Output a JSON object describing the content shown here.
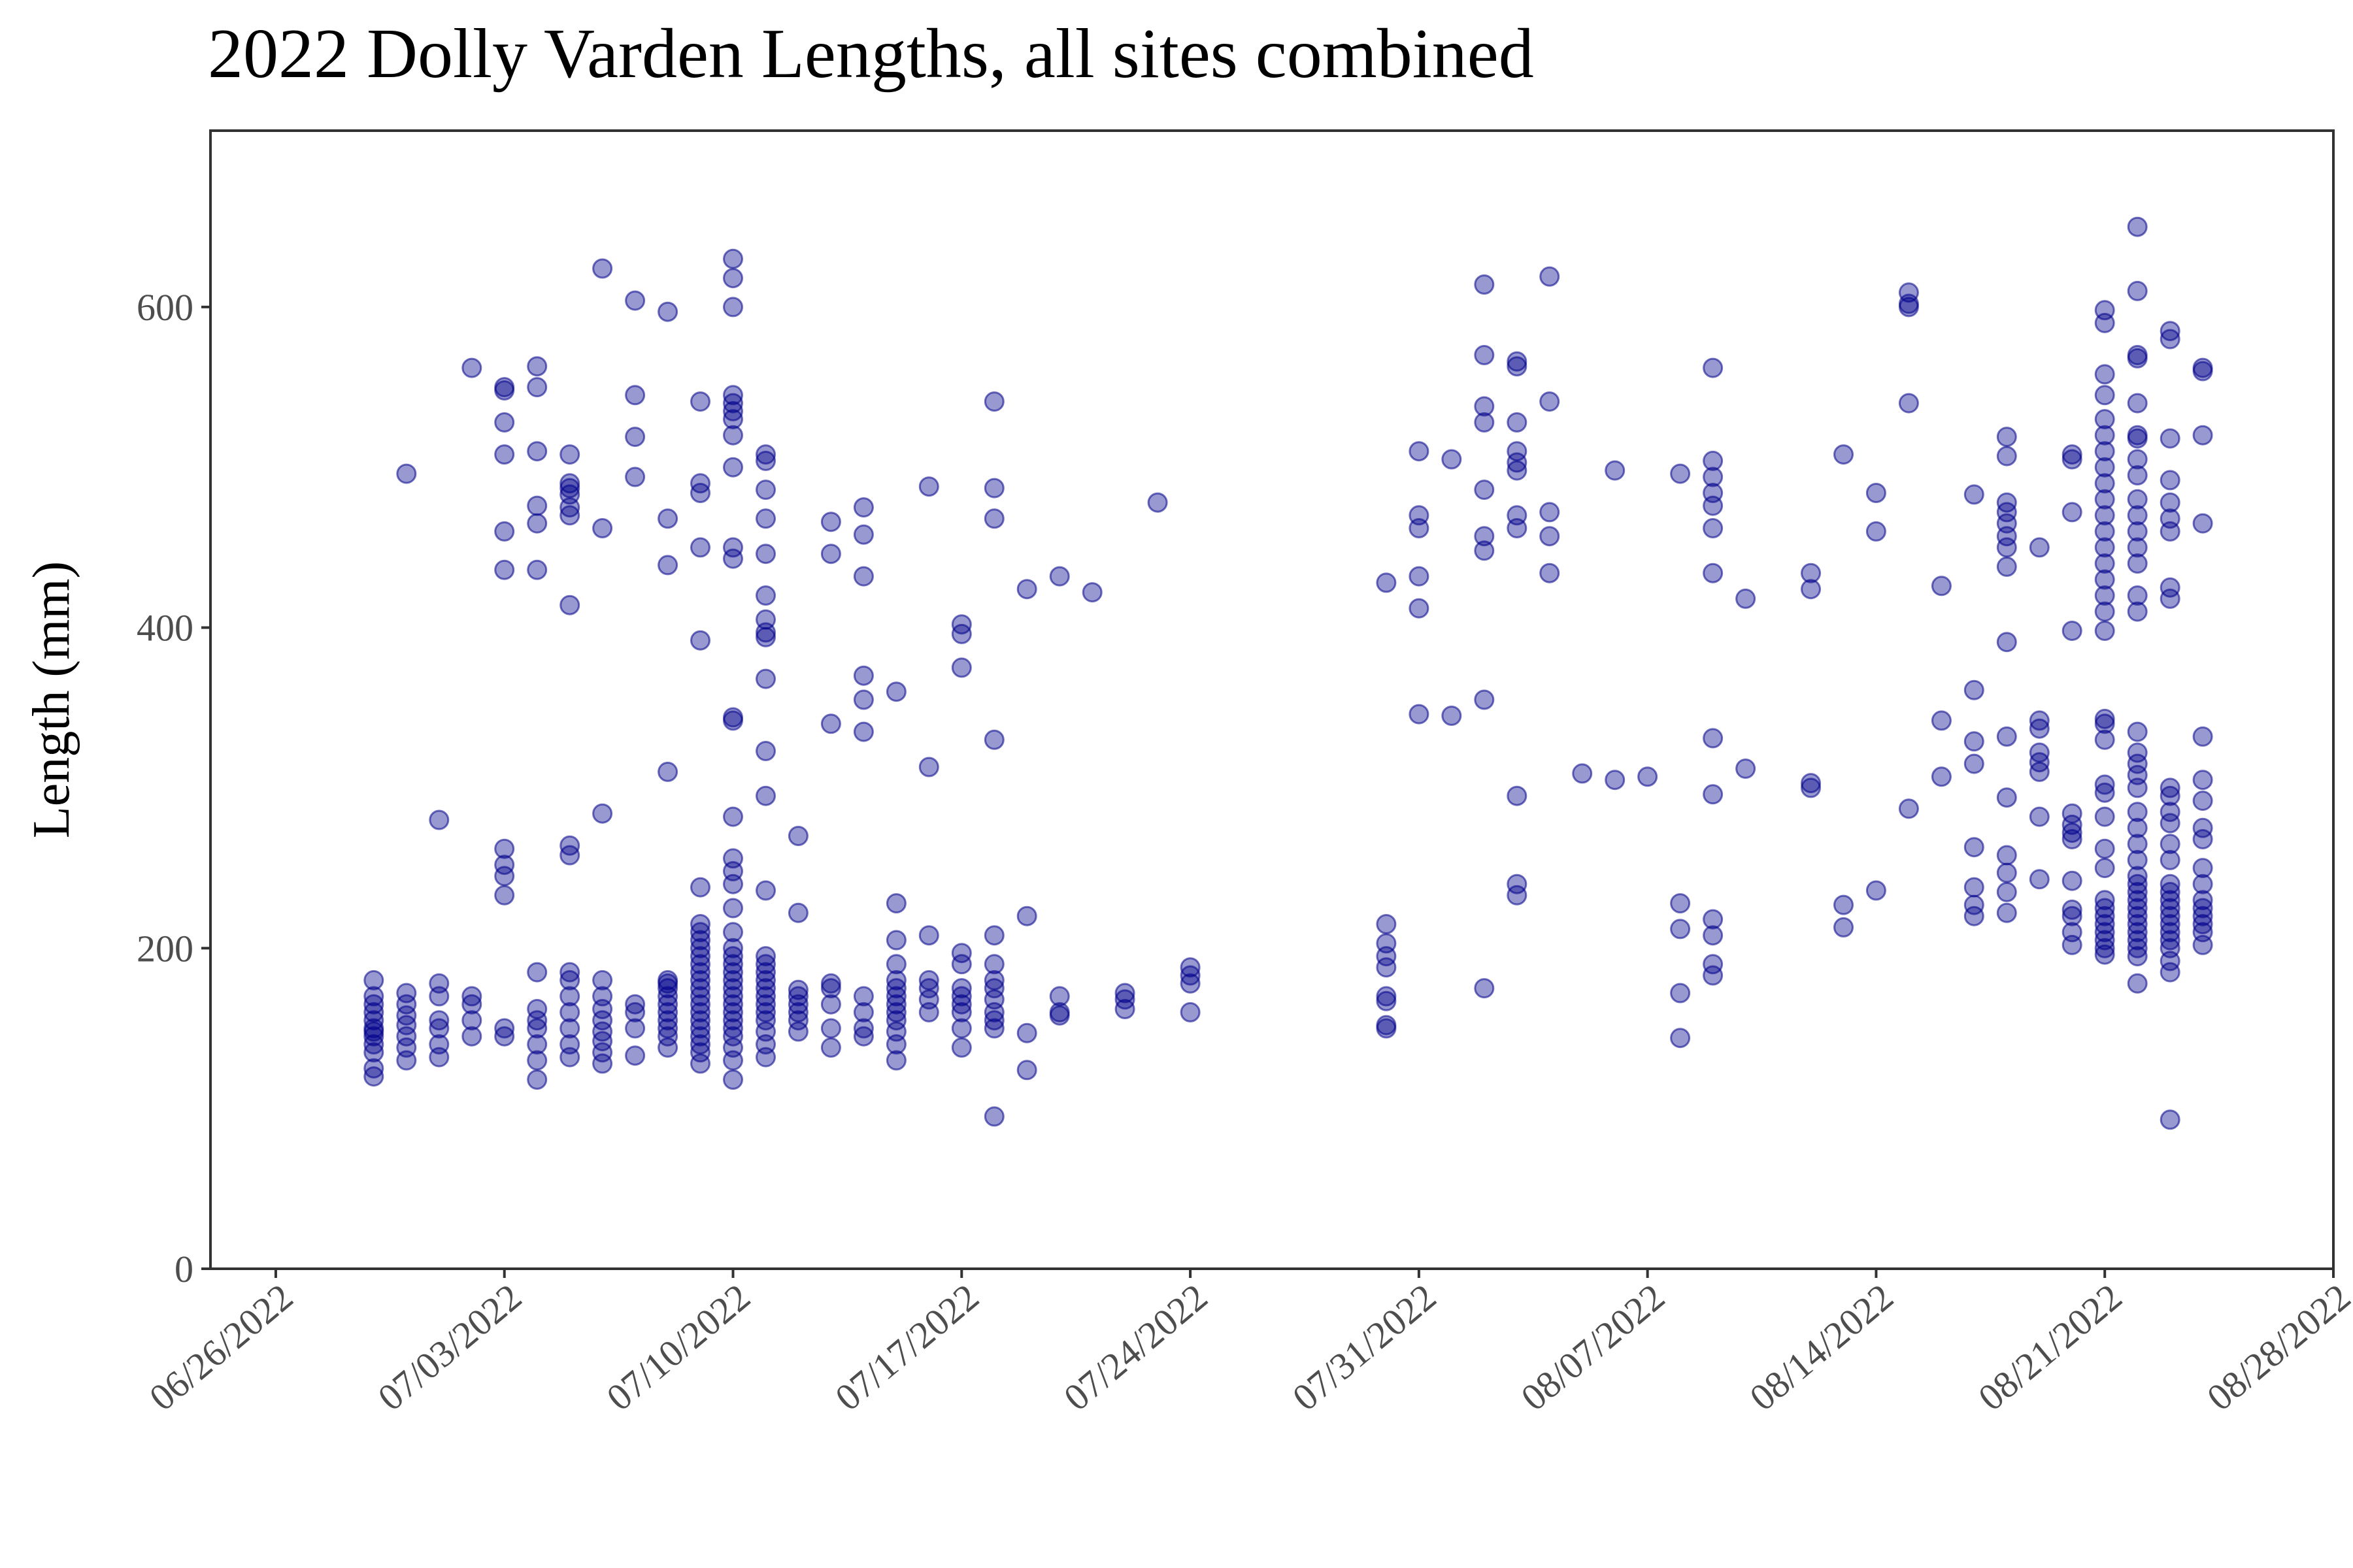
{
  "chart_data": {
    "type": "scatter",
    "title": "2022 Dolly Varden Lengths, all sites combined",
    "xlabel": "",
    "ylabel": "Length (mm)",
    "ylim": [
      0,
      710
    ],
    "xlim": [
      "2022-06-24",
      "2022-08-28"
    ],
    "yticks": [
      0,
      200,
      400,
      600
    ],
    "xticks": [
      "06/26/2022",
      "07/03/2022",
      "07/10/2022",
      "07/17/2022",
      "07/24/2022",
      "07/31/2022",
      "08/07/2022",
      "08/14/2022",
      "08/21/2022",
      "08/28/2022"
    ],
    "grid": false,
    "point_color": "#00008B",
    "point_opacity": 0.4,
    "series": [
      {
        "points": [
          {
            "date": "2022-06-29",
            "lengths": [
              120,
              125,
              135,
              140,
              145,
              148,
              150,
              155,
              160,
              165,
              170,
              180
            ]
          },
          {
            "date": "2022-06-30",
            "lengths": [
              130,
              138,
              145,
              152,
              158,
              165,
              172,
              496
            ]
          },
          {
            "date": "2022-07-01",
            "lengths": [
              132,
              140,
              150,
              155,
              170,
              178,
              280
            ]
          },
          {
            "date": "2022-07-02",
            "lengths": [
              145,
              155,
              165,
              170,
              562
            ]
          },
          {
            "date": "2022-07-03",
            "lengths": [
              145,
              150,
              233,
              245,
              252,
              262,
              436,
              460,
              508,
              528,
              548,
              550
            ]
          },
          {
            "date": "2022-07-04",
            "lengths": [
              118,
              130,
              140,
              150,
              155,
              162,
              185,
              436,
              465,
              476,
              510,
              550,
              563
            ]
          },
          {
            "date": "2022-07-05",
            "lengths": [
              132,
              140,
              150,
              160,
              170,
              180,
              185,
              258,
              264,
              414,
              470,
              475,
              483,
              487,
              490,
              508
            ]
          },
          {
            "date": "2022-07-06",
            "lengths": [
              128,
              135,
              142,
              148,
              155,
              162,
              170,
              180,
              284,
              462,
              624
            ]
          },
          {
            "date": "2022-07-07",
            "lengths": [
              133,
              150,
              160,
              165,
              494,
              519,
              545,
              604
            ]
          },
          {
            "date": "2022-07-08",
            "lengths": [
              138,
              145,
              150,
              155,
              160,
              165,
              170,
              175,
              178,
              180,
              310,
              439,
              468,
              597
            ]
          },
          {
            "date": "2022-07-09",
            "lengths": [
              128,
              135,
              140,
              145,
              150,
              155,
              160,
              165,
              170,
              175,
              180,
              185,
              190,
              195,
              200,
              205,
              210,
              215,
              238,
              392,
              450,
              484,
              490,
              541
            ]
          },
          {
            "date": "2022-07-10",
            "lengths": [
              118,
              130,
              138,
              145,
              150,
              155,
              160,
              165,
              170,
              175,
              180,
              185,
              190,
              195,
              200,
              210,
              225,
              240,
              248,
              256,
              282,
              342,
              344,
              443,
              450,
              500,
              520,
              530,
              535,
              540,
              545,
              600,
              618,
              630
            ]
          },
          {
            "date": "2022-07-11",
            "lengths": [
              132,
              140,
              148,
              155,
              160,
              165,
              170,
              175,
              180,
              185,
              190,
              195,
              236,
              295,
              323,
              368,
              394,
              397,
              405,
              420,
              446,
              468,
              486,
              504,
              508
            ]
          },
          {
            "date": "2022-07-12",
            "lengths": [
              148,
              155,
              160,
              165,
              170,
              174,
              222,
              270
            ]
          },
          {
            "date": "2022-07-13",
            "lengths": [
              138,
              150,
              165,
              175,
              178,
              340,
              446,
              466
            ]
          },
          {
            "date": "2022-07-14",
            "lengths": [
              145,
              150,
              160,
              170,
              335,
              355,
              370,
              432,
              458,
              475
            ]
          },
          {
            "date": "2022-07-15",
            "lengths": [
              130,
              140,
              148,
              155,
              160,
              165,
              170,
              175,
              180,
              190,
              205,
              228,
              360
            ]
          },
          {
            "date": "2022-07-16",
            "lengths": [
              160,
              168,
              175,
              180,
              208,
              313,
              488
            ]
          },
          {
            "date": "2022-07-17",
            "lengths": [
              138,
              150,
              160,
              165,
              170,
              175,
              190,
              197,
              375,
              396,
              402
            ]
          },
          {
            "date": "2022-07-18",
            "lengths": [
              95,
              150,
              155,
              160,
              168,
              175,
              180,
              190,
              208,
              330,
              468,
              487,
              541
            ]
          },
          {
            "date": "2022-07-19",
            "lengths": [
              124,
              147,
              220,
              424
            ]
          },
          {
            "date": "2022-07-20",
            "lengths": [
              158,
              160,
              170,
              432
            ]
          },
          {
            "date": "2022-07-21",
            "lengths": [
              422
            ]
          },
          {
            "date": "2022-07-22",
            "lengths": [
              162,
              168,
              172
            ]
          },
          {
            "date": "2022-07-23",
            "lengths": [
              478
            ]
          },
          {
            "date": "2022-07-24",
            "lengths": [
              160,
              178,
              183,
              188
            ]
          },
          {
            "date": "2022-07-30",
            "lengths": [
              150,
              152,
              167,
              170,
              188,
              195,
              203,
              215,
              428
            ]
          },
          {
            "date": "2022-07-31",
            "lengths": [
              346,
              412,
              432,
              462,
              470,
              510
            ]
          },
          {
            "date": "2022-08-01",
            "lengths": [
              345,
              505
            ]
          },
          {
            "date": "2022-08-02",
            "lengths": [
              175,
              355,
              448,
              457,
              486,
              528,
              538,
              570,
              614
            ]
          },
          {
            "date": "2022-08-03",
            "lengths": [
              233,
              240,
              295,
              462,
              470,
              498,
              503,
              510,
              528,
              563,
              566
            ]
          },
          {
            "date": "2022-08-04",
            "lengths": [
              434,
              457,
              472,
              541,
              619
            ]
          },
          {
            "date": "2022-08-05",
            "lengths": [
              309
            ]
          },
          {
            "date": "2022-08-06",
            "lengths": [
              305,
              498
            ]
          },
          {
            "date": "2022-08-07",
            "lengths": [
              307
            ]
          },
          {
            "date": "2022-08-08",
            "lengths": [
              144,
              172,
              212,
              228,
              496
            ]
          },
          {
            "date": "2022-08-09",
            "lengths": [
              183,
              190,
              208,
              218,
              296,
              331,
              434,
              462,
              476,
              484,
              494,
              504,
              562
            ]
          },
          {
            "date": "2022-08-10",
            "lengths": [
              312,
              418
            ]
          },
          {
            "date": "2022-08-12",
            "lengths": [
              300,
              303,
              424,
              434
            ]
          },
          {
            "date": "2022-08-13",
            "lengths": [
              213,
              227,
              508
            ]
          },
          {
            "date": "2022-08-14",
            "lengths": [
              236,
              460,
              484
            ]
          },
          {
            "date": "2022-08-15",
            "lengths": [
              287,
              540,
              600,
              602,
              609
            ]
          },
          {
            "date": "2022-08-16",
            "lengths": [
              307,
              342,
              426
            ]
          },
          {
            "date": "2022-08-17",
            "lengths": [
              220,
              227,
              238,
              263,
              315,
              329,
              361,
              483
            ]
          },
          {
            "date": "2022-08-18",
            "lengths": [
              222,
              235,
              247,
              258,
              294,
              332,
              391,
              438,
              450,
              457,
              465,
              472,
              478,
              507,
              519
            ]
          },
          {
            "date": "2022-08-19",
            "lengths": [
              243,
              282,
              310,
              316,
              322,
              337,
              342,
              450
            ]
          },
          {
            "date": "2022-08-20",
            "lengths": [
              202,
              210,
              220,
              224,
              242,
              268,
              272,
              277,
              284,
              398,
              472,
              505,
              508
            ]
          },
          {
            "date": "2022-08-21",
            "lengths": [
              196,
              200,
              205,
              210,
              215,
              220,
              225,
              230,
              250,
              262,
              282,
              297,
              302,
              330,
              340,
              343,
              398,
              410,
              420,
              430,
              440,
              450,
              460,
              470,
              480,
              490,
              500,
              510,
              520,
              530,
              545,
              558,
              590,
              598
            ]
          },
          {
            "date": "2022-08-22",
            "lengths": [
              178,
              195,
              200,
              205,
              210,
              215,
              220,
              225,
              230,
              235,
              240,
              245,
              255,
              265,
              275,
              285,
              300,
              308,
              315,
              322,
              335,
              410,
              420,
              440,
              450,
              460,
              470,
              480,
              495,
              505,
              518,
              520,
              540,
              568,
              570,
              610,
              650
            ]
          },
          {
            "date": "2022-08-23",
            "lengths": [
              93,
              185,
              192,
              200,
              205,
              210,
              215,
              220,
              225,
              230,
              235,
              240,
              255,
              265,
              278,
              285,
              295,
              300,
              418,
              425,
              460,
              468,
              478,
              492,
              518,
              580,
              585
            ]
          },
          {
            "date": "2022-08-24",
            "lengths": [
              202,
              210,
              215,
              220,
              225,
              230,
              240,
              250,
              268,
              275,
              292,
              305,
              332,
              465,
              520,
              560,
              562
            ]
          }
        ]
      }
    ]
  }
}
